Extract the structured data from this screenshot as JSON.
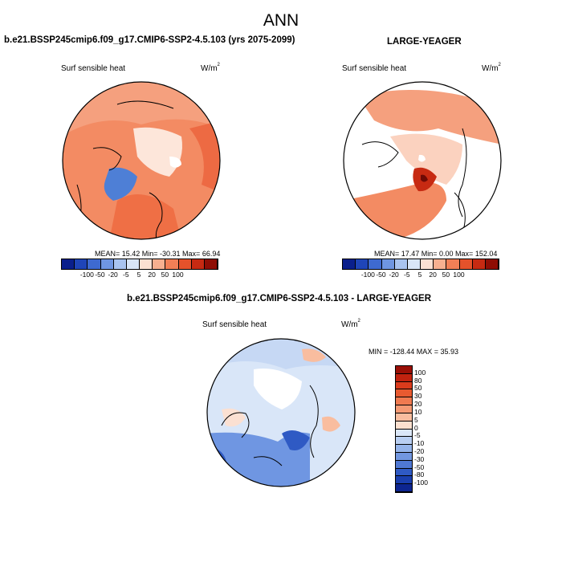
{
  "title": "ANN",
  "panels": [
    {
      "title": "b.e21.BSSP245cmip6.f09_g17.CMIP6-SSP2-4.5.103 (yrs 2075-2099)",
      "variable": "Surf sensible heat",
      "units_base": "W/m",
      "units_exp": "2",
      "stats_text": "MEAN=  15.42  Min= -30.31  Max=  66.94",
      "mean": 15.42,
      "min": -30.31,
      "max": 66.94
    },
    {
      "title": "LARGE-YEAGER",
      "variable": "Surf sensible heat",
      "units_base": "W/m",
      "units_exp": "2",
      "stats_text": "MEAN=  17.47  Min=   0.00  Max= 152.04",
      "mean": 17.47,
      "min": 0.0,
      "max": 152.04
    },
    {
      "title": "b.e21.BSSP245cmip6.f09_g17.CMIP6-SSP2-4.5.103 - LARGE-YEAGER",
      "variable": "Surf sensible heat",
      "units_base": "W/m",
      "units_exp": "2",
      "stats_text": "MIN = -128.44 MAX =  35.93",
      "min": -128.44,
      "max": 35.93
    }
  ],
  "colorbar_horizontal": {
    "labels": [
      "-100",
      "-50",
      "-20",
      "-5",
      "5",
      "20",
      "50",
      "100"
    ],
    "colors": [
      "#0a1f8c",
      "#1f45b8",
      "#3e6ad0",
      "#6f96e2",
      "#a9c4f0",
      "#d9e6f8",
      "#fbe0d2",
      "#f7b090",
      "#f17f56",
      "#e5522b",
      "#c72a12",
      "#8f0d04"
    ]
  },
  "colorbar_vertical": {
    "labels": [
      "100",
      "80",
      "50",
      "30",
      "20",
      "10",
      "5",
      "0",
      "-5",
      "-10",
      "-20",
      "-30",
      "-50",
      "-80",
      "-100"
    ],
    "colors": [
      "#9a0f06",
      "#c1220f",
      "#db3b1c",
      "#e85a30",
      "#f07a50",
      "#f59a74",
      "#f9bd9f",
      "#fce0cf",
      "#dbe7f8",
      "#b9cff2",
      "#95b4ea",
      "#7297e0",
      "#4f78d3",
      "#2f5ac4",
      "#1a3fae",
      "#0d2590"
    ]
  },
  "chart_data": {
    "type": "heatmap",
    "projection": "north polar stereographic",
    "season": "ANN",
    "variable": "Surf sensible heat",
    "units": "W/m2",
    "maps": [
      {
        "name": "b.e21.BSSP245cmip6.f09_g17.CMIP6-SSP2-4.5.103 (yrs 2075-2099)",
        "mean": 15.42,
        "min": -30.31,
        "max": 66.94
      },
      {
        "name": "LARGE-YEAGER",
        "mean": 17.47,
        "min": 0.0,
        "max": 152.04
      },
      {
        "name": "b.e21.BSSP245cmip6.f09_g17.CMIP6-SSP2-4.5.103 - LARGE-YEAGER",
        "min": -128.44,
        "max": 35.93
      }
    ],
    "contour_levels_panels_1_2": [
      -100,
      -50,
      -20,
      -5,
      5,
      20,
      50,
      100
    ],
    "contour_levels_difference": [
      -100,
      -80,
      -50,
      -30,
      -20,
      -10,
      -5,
      0,
      5,
      10,
      20,
      30,
      50,
      80,
      100
    ]
  }
}
